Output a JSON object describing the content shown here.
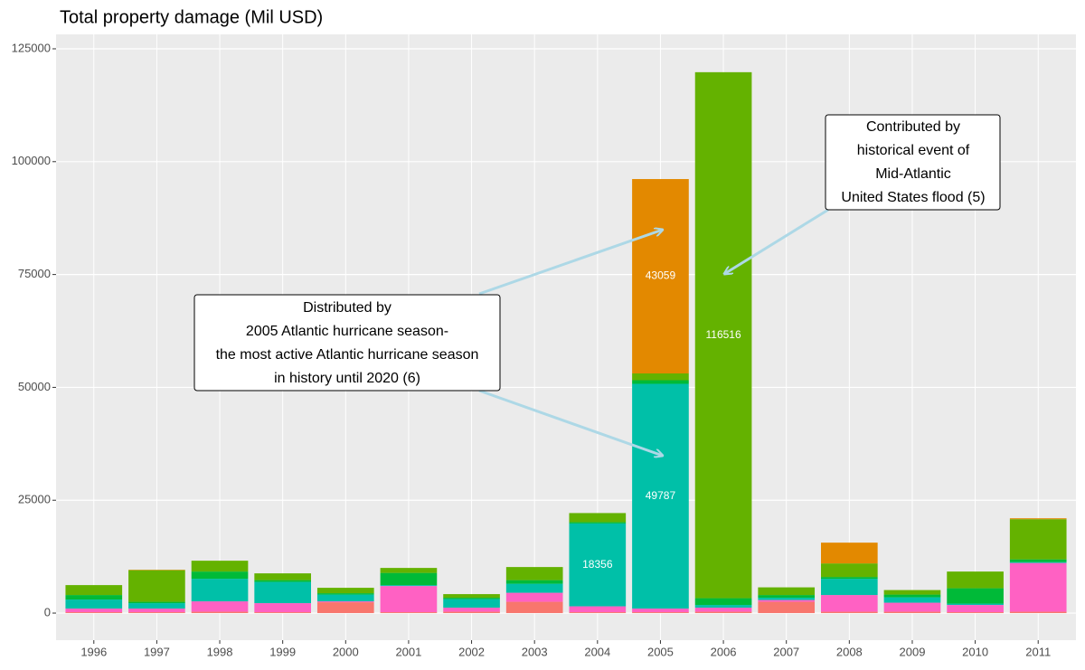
{
  "chart_data": {
    "type": "stacked_bar",
    "title": "Total property damage (Mil USD)",
    "categories": [
      "1996",
      "1997",
      "1998",
      "1999",
      "2000",
      "2001",
      "2002",
      "2003",
      "2004",
      "2005",
      "2006",
      "2007",
      "2008",
      "2009",
      "2010",
      "2011"
    ],
    "series": [
      {
        "color": "#F8766D",
        "values": [
          200,
          200,
          300,
          200,
          2400,
          200,
          300,
          2500,
          200,
          200,
          300,
          2500,
          300,
          300,
          200,
          300
        ]
      },
      {
        "color": "#FF61C3",
        "values": [
          800,
          800,
          2300,
          2000,
          200,
          5800,
          900,
          2000,
          1300,
          800,
          900,
          400,
          3700,
          2000,
          1600,
          10800
        ]
      },
      {
        "color": "#00C0A8",
        "values": [
          2000,
          1200,
          5000,
          4700,
          1500,
          200,
          1900,
          2000,
          18356,
          49787,
          600,
          500,
          3600,
          1200,
          300,
          200
        ]
      },
      {
        "color": "#00BA38",
        "values": [
          1000,
          300,
          1600,
          400,
          300,
          2700,
          300,
          800,
          300,
          800,
          1500,
          600,
          400,
          600,
          3400,
          600
        ]
      },
      {
        "color": "#64B200",
        "values": [
          2200,
          7000,
          2400,
          1500,
          1200,
          1100,
          800,
          2900,
          2000,
          1500,
          116516,
          1700,
          3000,
          1000,
          3700,
          8900
        ]
      },
      {
        "color": "#E38900",
        "values": [
          0,
          100,
          0,
          0,
          0,
          0,
          0,
          0,
          0,
          43059,
          0,
          0,
          4600,
          0,
          0,
          200
        ]
      }
    ],
    "ylim": [
      -6000,
      128200
    ],
    "yticks": [
      0,
      25000,
      50000,
      75000,
      100000,
      125000
    ],
    "grid": true,
    "annotations": [
      {
        "lines": [
          "Distributed by",
          "2005 Atlantic hurricane season-",
          "the most active Atlantic hurricane season",
          "in history until 2020 (6)"
        ]
      },
      {
        "lines": [
          "Contributed by",
          "historical event of",
          "Mid-Atlantic",
          "United States flood (5)"
        ]
      }
    ]
  }
}
